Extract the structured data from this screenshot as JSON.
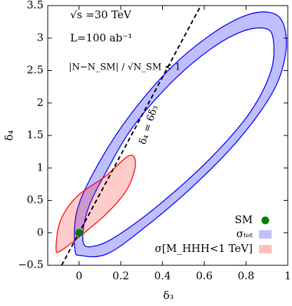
{
  "chart_data": {
    "type": "contour",
    "xlabel": "δ₃",
    "ylabel": "δ₄",
    "xlim": [
      -0.15,
      1
    ],
    "ylim": [
      -0.5,
      3.5
    ],
    "xticks": [
      0,
      0.2,
      0.4,
      0.6,
      0.8,
      1
    ],
    "yticks": [
      {
        "value": -0.5,
        "label": "−0.5"
      },
      0,
      0.5,
      1,
      1.5,
      2,
      2.5,
      3,
      3.5
    ],
    "annotations": [
      "√s =30 TeV",
      "L=100 ab⁻¹",
      "|N−N_SM| / √N_SM < 1"
    ],
    "line": {
      "label": "δ₄ = 6δ₃",
      "x": [
        -0.0833,
        0.5833
      ],
      "y": [
        -0.5,
        3.5
      ]
    },
    "series": [
      {
        "name": "SM",
        "kind": "point",
        "color": "#008000",
        "x": [
          0
        ],
        "y": [
          0
        ]
      },
      {
        "name": "σₜₒₜ",
        "kind": "band",
        "color": "#0000ff",
        "outer": {
          "x": [
            -0.02,
            -0.01,
            0.08,
            0.23,
            0.43,
            0.63,
            0.8,
            0.92,
            0.98,
            0.99,
            0.93,
            0.76,
            0.53,
            0.29,
            0.13,
            0.01
          ],
          "y": [
            -0.25,
            0.34,
            0.99,
            1.75,
            2.51,
            3.05,
            3.35,
            3.39,
            3.21,
            2.77,
            2.18,
            1.42,
            0.67,
            0.02,
            -0.33,
            -0.35
          ]
        },
        "inner": {
          "x": [
            0.02,
            0.04,
            0.13,
            0.26,
            0.45,
            0.63,
            0.78,
            0.89,
            0.93,
            0.92,
            0.82,
            0.63,
            0.39,
            0.19,
            0.08
          ],
          "y": [
            -0.15,
            0.34,
            0.94,
            1.64,
            2.34,
            2.83,
            3.1,
            3.15,
            2.99,
            2.5,
            1.86,
            1.15,
            0.45,
            -0.03,
            -0.2
          ]
        }
      },
      {
        "name": "σ[M_HHH<1 TeV]",
        "kind": "region",
        "color": "#ff0000",
        "outer": {
          "x": [
            -0.11,
            -0.09,
            -0.01,
            0.13,
            0.24,
            0.27,
            0.23,
            0.13,
            -0.01,
            -0.09
          ],
          "y": [
            -0.25,
            0.18,
            0.56,
            0.88,
            1.19,
            1.05,
            0.67,
            0.29,
            -0.09,
            -0.28
          ]
        }
      }
    ]
  }
}
